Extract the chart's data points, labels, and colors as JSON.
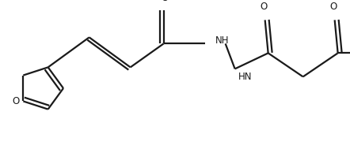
{
  "background_color": "#ffffff",
  "line_color": "#1a1a1a",
  "line_width": 1.6,
  "figsize": [
    4.42,
    1.84
  ],
  "dpi": 100,
  "font_size": 8.5,
  "xlim": [
    0,
    442
  ],
  "ylim": [
    0,
    184
  ]
}
